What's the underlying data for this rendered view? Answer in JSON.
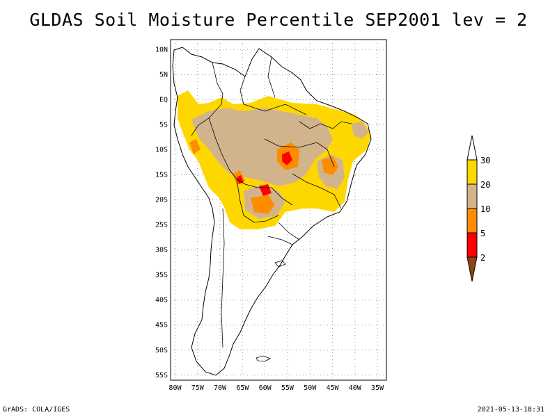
{
  "title": "GLDAS Soil Moisture Percentile SEP2001 lev = 2",
  "footer": {
    "left": "GrADS: COLA/IGES",
    "right": "2021-05-13-18:31"
  },
  "map": {
    "lat_labels": [
      "10N",
      "5N",
      "EQ",
      "5S",
      "10S",
      "15S",
      "20S",
      "25S",
      "30S",
      "35S",
      "40S",
      "45S",
      "50S",
      "55S"
    ],
    "lon_labels": [
      "80W",
      "75W",
      "70W",
      "65W",
      "60W",
      "55W",
      "50W",
      "45W",
      "40W",
      "35W"
    ],
    "lat_range": [
      -56,
      12
    ],
    "lon_range": [
      -81,
      -33
    ],
    "grid": true
  },
  "colorbar": {
    "levels": [
      "2",
      "5",
      "10",
      "20",
      "30"
    ],
    "colors": [
      "#8b4513",
      "#ff0000",
      "#ff8c00",
      "#d2b48c",
      "#ffd700",
      "#ffffff"
    ]
  }
}
